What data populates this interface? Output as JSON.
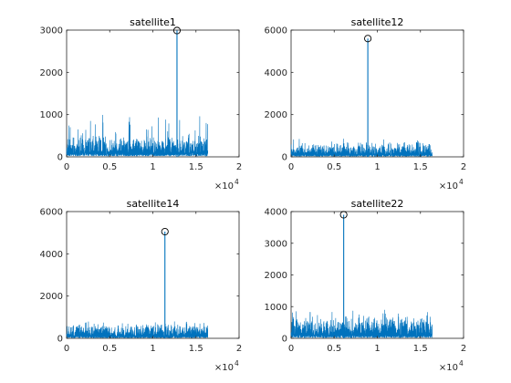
{
  "figure": {
    "charts": [
      {
        "title": "satellite1",
        "ylim": [
          0,
          3000
        ],
        "yticks": [
          0,
          1000,
          2000,
          3000
        ]
      },
      {
        "title": "satellite12",
        "ylim": [
          0,
          6000
        ],
        "yticks": [
          0,
          2000,
          4000,
          6000
        ]
      },
      {
        "title": "satellite14",
        "ylim": [
          0,
          6000
        ],
        "yticks": [
          0,
          2000,
          4000,
          6000
        ]
      },
      {
        "title": "satellite22",
        "ylim": [
          0,
          4000
        ],
        "yticks": [
          0,
          1000,
          2000,
          3000,
          4000
        ]
      }
    ]
  },
  "chart_data": [
    {
      "type": "line",
      "title": "satellite1",
      "xlabel": "",
      "ylabel": "",
      "xlim": [
        0,
        20000
      ],
      "ylim": [
        0,
        3000
      ],
      "xticks": [
        "0",
        "0.5",
        "1",
        "1.5",
        "2"
      ],
      "x_multiplier": "×10^4",
      "yticks": [
        "0",
        "1000",
        "2000",
        "3000"
      ],
      "grid": false,
      "series_color": "#0072BD",
      "x_range": [
        1,
        16368
      ],
      "noise_floor_typical": 350,
      "noise_floor_max": 1000,
      "peak": {
        "x": 12800,
        "y": 2990
      }
    },
    {
      "type": "line",
      "title": "satellite12",
      "xlabel": "",
      "ylabel": "",
      "xlim": [
        0,
        20000
      ],
      "ylim": [
        0,
        6000
      ],
      "xticks": [
        "0",
        "0.5",
        "1",
        "1.5",
        "2"
      ],
      "x_multiplier": "×10^4",
      "yticks": [
        "0",
        "2000",
        "4000",
        "6000"
      ],
      "grid": false,
      "series_color": "#0072BD",
      "x_range": [
        1,
        16368
      ],
      "noise_floor_typical": 450,
      "noise_floor_max": 900,
      "peak": {
        "x": 8900,
        "y": 5600
      }
    },
    {
      "type": "line",
      "title": "satellite14",
      "xlabel": "",
      "ylabel": "",
      "xlim": [
        0,
        20000
      ],
      "ylim": [
        0,
        6000
      ],
      "xticks": [
        "0",
        "0.5",
        "1",
        "1.5",
        "2"
      ],
      "x_multiplier": "×10^4",
      "yticks": [
        "0",
        "2000",
        "4000",
        "6000"
      ],
      "grid": false,
      "series_color": "#0072BD",
      "x_range": [
        1,
        16368
      ],
      "noise_floor_typical": 450,
      "noise_floor_max": 800,
      "peak": {
        "x": 11400,
        "y": 5050
      }
    },
    {
      "type": "line",
      "title": "satellite22",
      "xlabel": "",
      "ylabel": "",
      "xlim": [
        0,
        20000
      ],
      "ylim": [
        0,
        4000
      ],
      "xticks": [
        "0",
        "0.5",
        "1",
        "1.5",
        "2"
      ],
      "x_multiplier": "×10^4",
      "yticks": [
        "0",
        "1000",
        "2000",
        "3000",
        "4000"
      ],
      "grid": false,
      "series_color": "#0072BD",
      "x_range": [
        1,
        16368
      ],
      "noise_floor_typical": 450,
      "noise_floor_max": 900,
      "peak": {
        "x": 6100,
        "y": 3900
      }
    }
  ]
}
